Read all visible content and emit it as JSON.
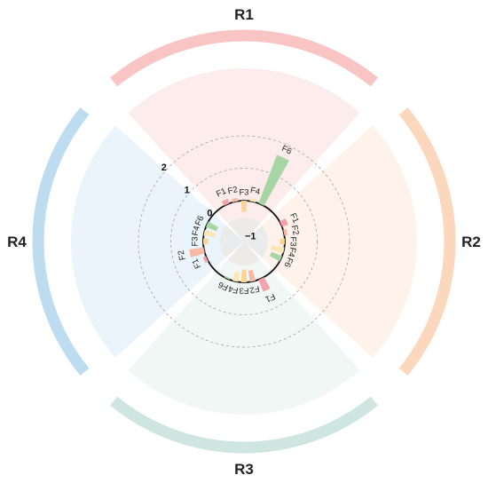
{
  "chart_data": {
    "type": "bar",
    "layout": "circular",
    "radial_axis": {
      "ticks": [
        "2",
        "1",
        "0",
        "−1"
      ],
      "ylim": [
        -1,
        2
      ]
    },
    "regions": [
      {
        "name": "R1",
        "color": "#f8c4c4"
      },
      {
        "name": "R2",
        "color": "#fbd7bd"
      },
      {
        "name": "R3",
        "color": "#cfe6e0"
      },
      {
        "name": "R4",
        "color": "#bddcef"
      }
    ],
    "bar_colors": {
      "F1": "#f4a3ad",
      "F2": "#f8b9a6",
      "F3": "#fbd596",
      "F4": "#fde6b7",
      "F6": "#a8d5a4"
    },
    "categories": [
      "F1",
      "F2",
      "F3",
      "F4",
      "F6"
    ],
    "series": [
      {
        "region": "R1",
        "labels": [
          "F1",
          "F2",
          "F3",
          "F4",
          "F6"
        ],
        "values": [
          0.15,
          0.1,
          -0.35,
          0.08,
          1.6
        ]
      },
      {
        "region": "R2",
        "labels": [
          "F1",
          "F2",
          "F3",
          "F4",
          "F6"
        ],
        "values": [
          0.2,
          0.1,
          -0.15,
          -0.4,
          -0.35
        ]
      },
      {
        "region": "R3",
        "labels": [
          "F1",
          "F2",
          "F3",
          "F4",
          "F6"
        ],
        "values": [
          0.4,
          -0.35,
          -0.4,
          -0.3,
          -0.05
        ]
      },
      {
        "region": "R4",
        "labels": [
          "F1",
          "F2",
          "F3",
          "F4",
          "F6"
        ],
        "values": [
          0.1,
          0.45,
          -0.15,
          -0.35,
          -0.35
        ]
      }
    ]
  }
}
